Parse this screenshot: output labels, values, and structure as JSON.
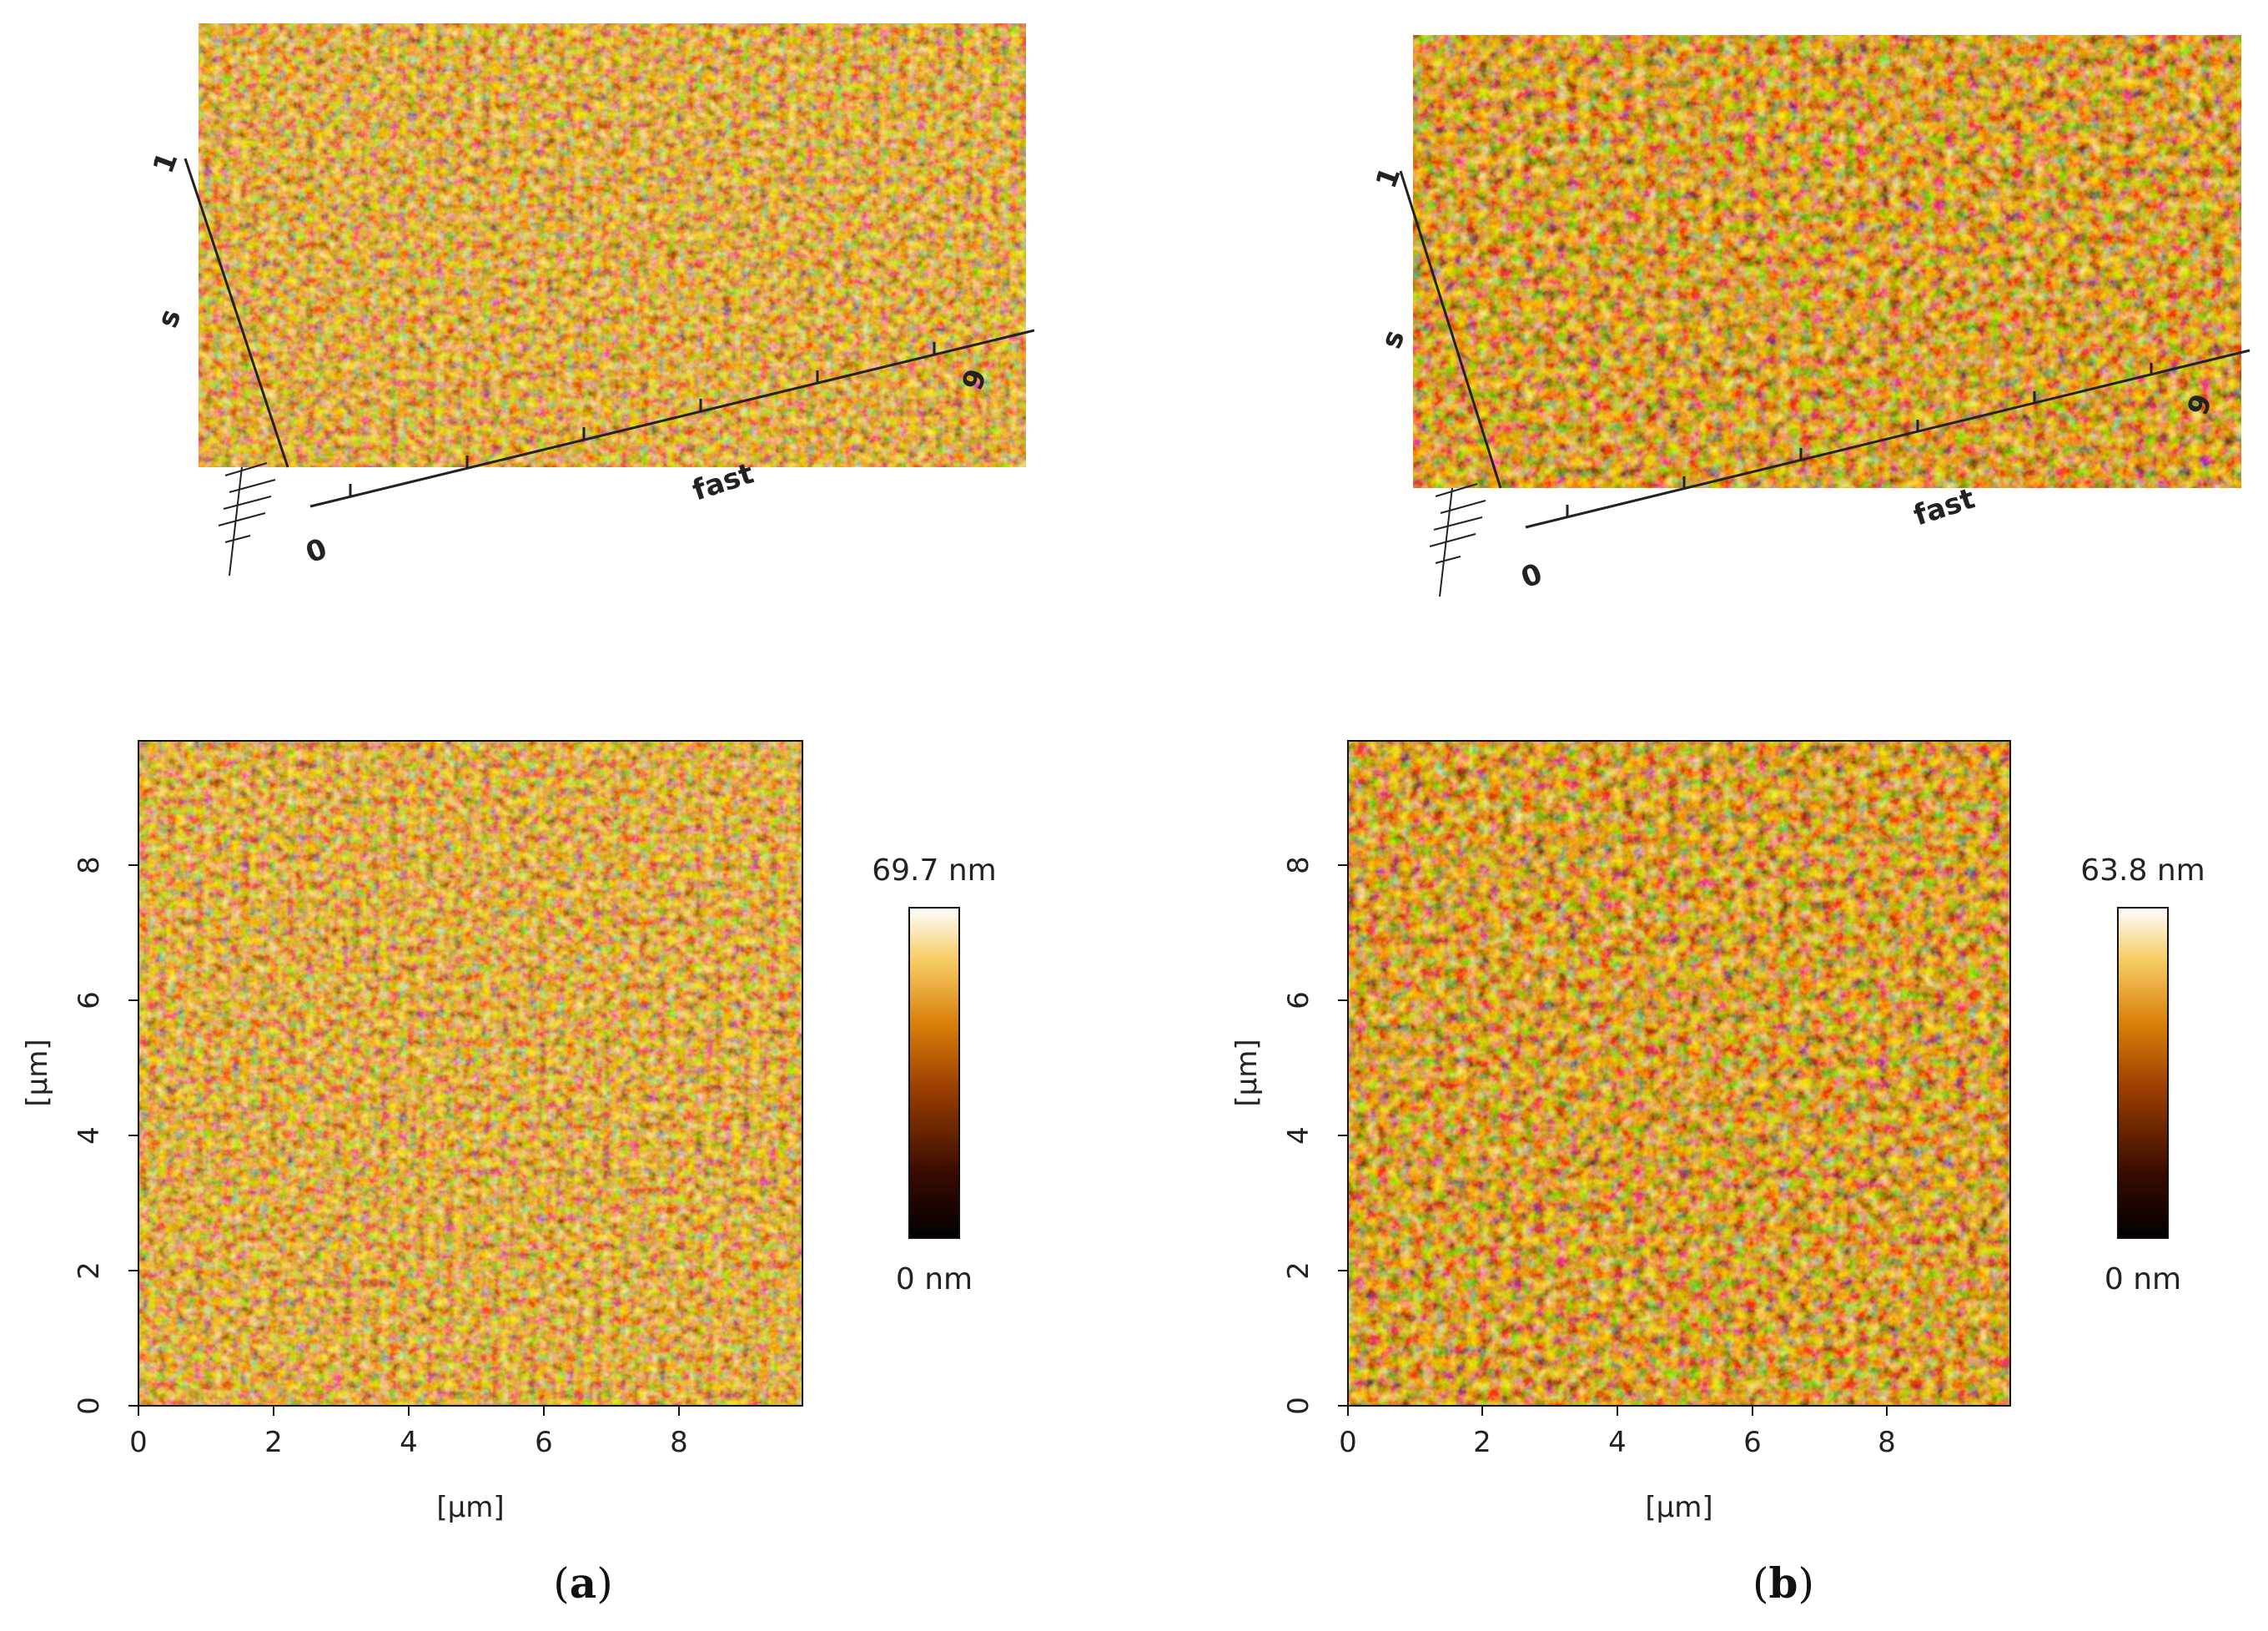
{
  "panels": [
    {
      "id": "a",
      "caption_open": "(",
      "caption_letter": "a",
      "caption_close": ")",
      "view3d": {
        "slow_label": "s",
        "fast_label": "fast",
        "axis_start": "0",
        "axis_end": "9",
        "axis_end_y": "1"
      },
      "map": {
        "xlabel": "[µm]",
        "ylabel": "[µm]",
        "xticks": [
          "0",
          "2",
          "4",
          "6",
          "8"
        ],
        "yticks": [
          "0",
          "2",
          "4",
          "6",
          "8"
        ],
        "colorbar_max": "69.7 nm",
        "colorbar_min": "0 nm"
      }
    },
    {
      "id": "b",
      "caption_open": "(",
      "caption_letter": "b",
      "caption_close": ")",
      "view3d": {
        "slow_label": "s",
        "fast_label": "fast",
        "axis_start": "0",
        "axis_end": "9",
        "axis_end_y": "1"
      },
      "map": {
        "xlabel": "[µm]",
        "ylabel": "[µm]",
        "xticks": [
          "0",
          "2",
          "4",
          "6",
          "8"
        ],
        "yticks": [
          "0",
          "2",
          "4",
          "6",
          "8"
        ],
        "colorbar_max": "63.8 nm",
        "colorbar_min": "0 nm"
      }
    }
  ],
  "colors": {
    "afm_dark": "#1a0500",
    "afm_mid": "#b8620c",
    "afm_bright": "#ffe9a0",
    "afm_white": "#fffbe8"
  }
}
